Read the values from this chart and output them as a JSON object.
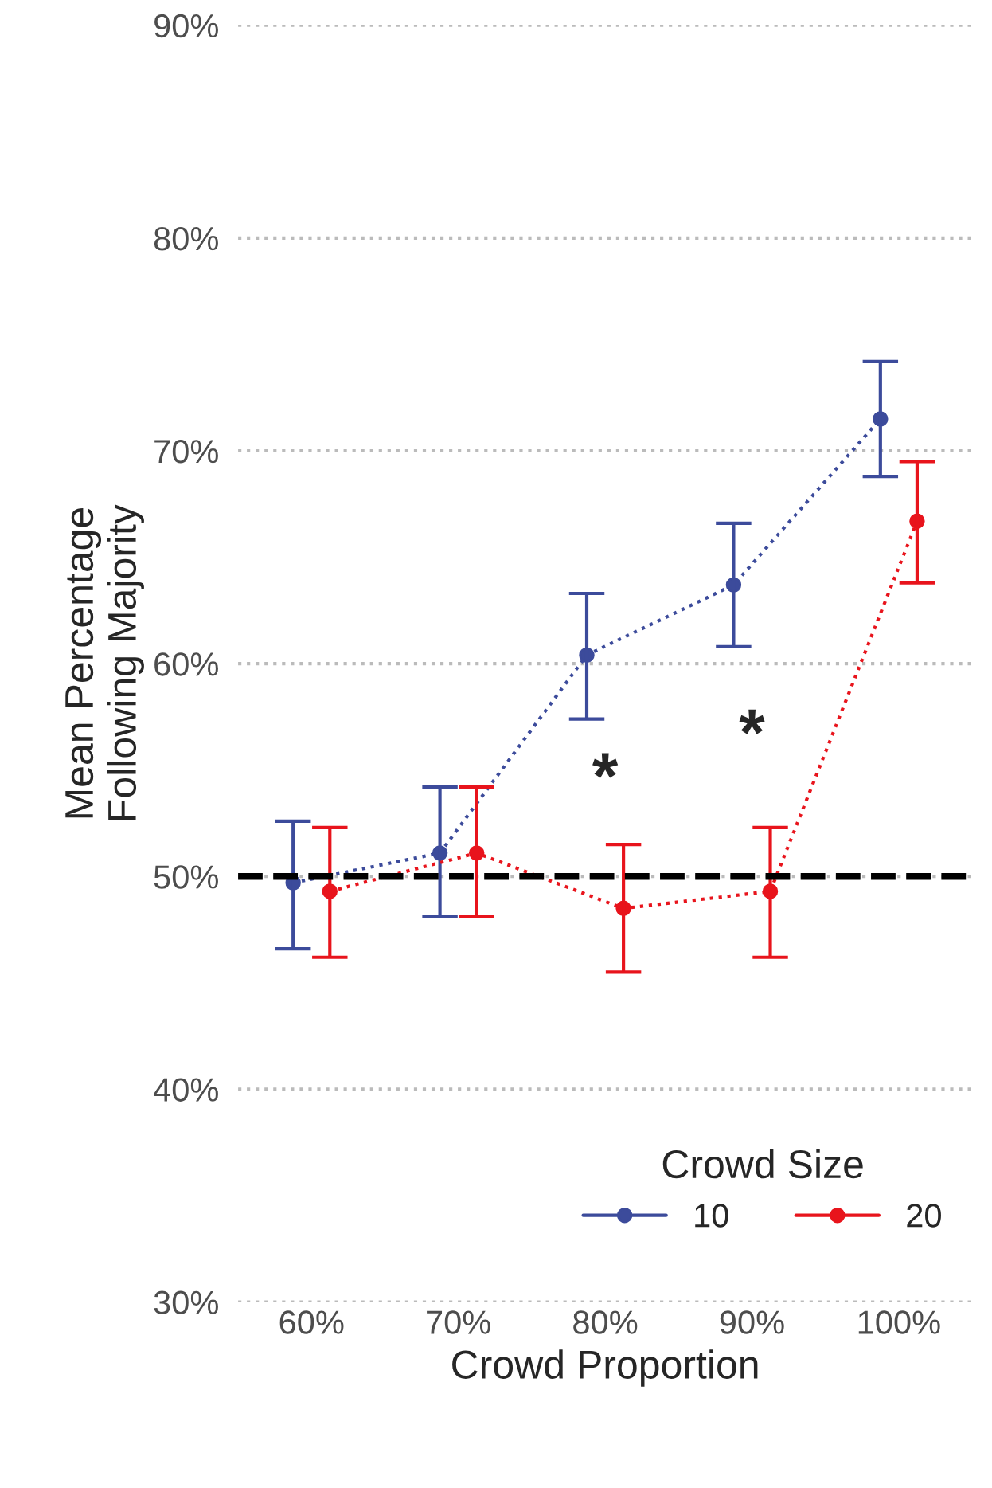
{
  "chart_data": {
    "type": "line",
    "xlabel": "Crowd Proportion",
    "ylabel": "Mean Percentage\nFollowing Majority",
    "legend_title": "Crowd Size",
    "categories": [
      "60%",
      "70%",
      "80%",
      "90%",
      "100%"
    ],
    "series": [
      {
        "name": "10",
        "color": "#3c4b9b",
        "values": [
          49.7,
          51.1,
          60.4,
          63.7,
          71.5
        ],
        "errors": [
          [
            46.6,
            52.6
          ],
          [
            48.1,
            54.2
          ],
          [
            57.4,
            63.3
          ],
          [
            60.8,
            66.6
          ],
          [
            68.8,
            74.2
          ]
        ]
      },
      {
        "name": "20",
        "color": "#e8141c",
        "values": [
          49.3,
          51.1,
          48.5,
          49.3,
          66.7
        ],
        "errors": [
          [
            46.2,
            52.3
          ],
          [
            48.1,
            54.2
          ],
          [
            45.5,
            51.5
          ],
          [
            46.2,
            52.3
          ],
          [
            63.8,
            69.5
          ]
        ]
      }
    ],
    "ylim": [
      30,
      90
    ],
    "yticks": [
      {
        "value": 30,
        "label": "30%"
      },
      {
        "value": 40,
        "label": "40%"
      },
      {
        "value": 50,
        "label": "50%"
      },
      {
        "value": 60,
        "label": "60%"
      },
      {
        "value": 70,
        "label": "70%"
      },
      {
        "value": 80,
        "label": "80%"
      },
      {
        "value": 90,
        "label": "90%"
      }
    ],
    "ref_lines": [
      {
        "axis": "y",
        "value": 50,
        "color": "#000000",
        "line_style": "dashed"
      }
    ],
    "annotations": [
      "*",
      "*"
    ],
    "grid": "y",
    "legend": "bottom right",
    "marker": "circle",
    "line_style": "dotted"
  }
}
